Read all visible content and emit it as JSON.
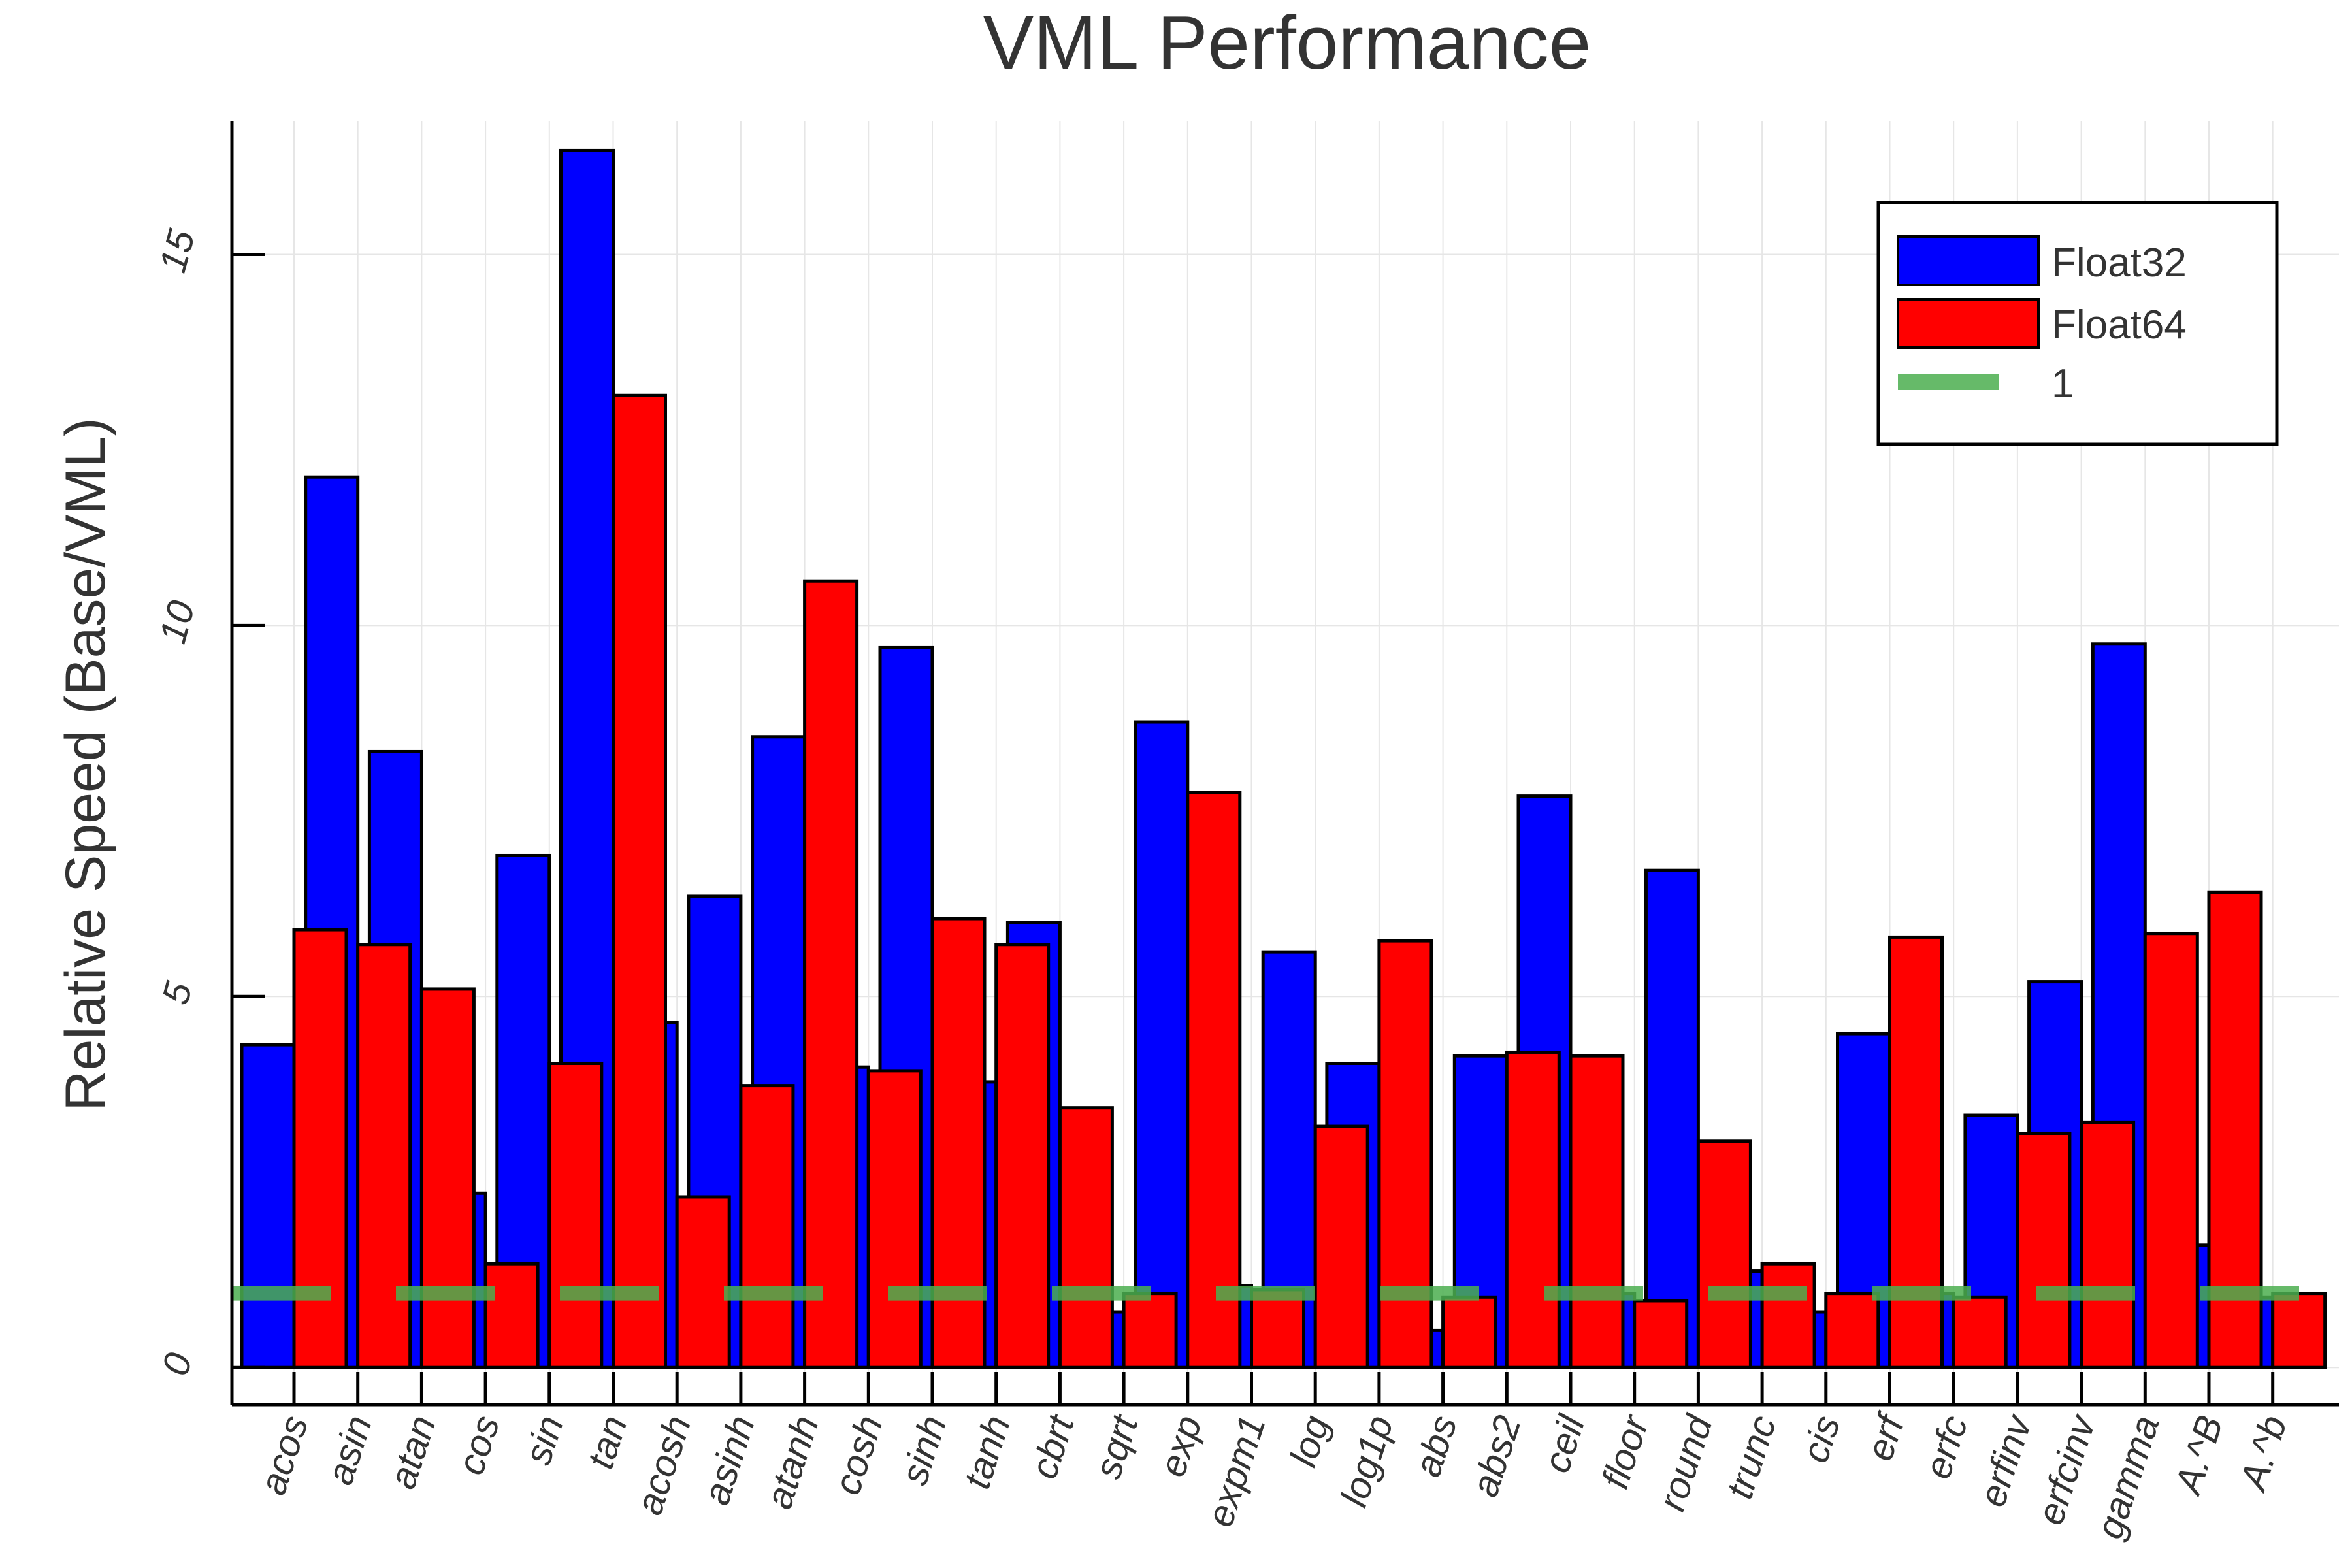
{
  "chart_data": {
    "type": "bar",
    "title": "VML Performance",
    "xlabel": "",
    "ylabel": "Relative Speed (Base/VML)",
    "ylim": [
      -0.5,
      16.8
    ],
    "yticks": [
      0,
      5,
      10,
      15
    ],
    "grid": true,
    "legend": "top-right",
    "categories": [
      "acos",
      "asin",
      "atan",
      "cos",
      "sin",
      "tan",
      "acosh",
      "asinh",
      "atanh",
      "cosh",
      "sinh",
      "tanh",
      "cbrt",
      "sqrt",
      "exp",
      "expm1",
      "log",
      "log1p",
      "abs",
      "abs2",
      "ceil",
      "floor",
      "round",
      "trunc",
      "cis",
      "erf",
      "erfc",
      "erfinv",
      "erfcinv",
      "gamma",
      "A.^B",
      "A.^b"
    ],
    "series": [
      {
        "name": "Float32",
        "color": "#0000ff",
        "values": [
          4.35,
          12.0,
          8.3,
          2.35,
          6.9,
          16.4,
          4.65,
          6.35,
          8.5,
          4.05,
          9.7,
          3.85,
          6.0,
          0.75,
          8.7,
          1.1,
          5.6,
          4.1,
          0.5,
          4.2,
          7.7,
          1.0,
          6.7,
          1.3,
          0.75,
          4.5,
          1.0,
          3.4,
          5.2,
          9.75,
          1.65,
          0.95
        ]
      },
      {
        "name": "Float64",
        "color": "#ff0000",
        "values": [
          5.9,
          5.7,
          5.1,
          1.4,
          4.1,
          13.1,
          2.3,
          3.8,
          10.6,
          4.0,
          6.05,
          5.7,
          3.5,
          1.0,
          7.75,
          1.05,
          3.25,
          5.75,
          0.95,
          4.25,
          4.2,
          0.9,
          3.05,
          1.4,
          1.0,
          5.8,
          0.95,
          3.15,
          3.3,
          5.85,
          6.4,
          1.0
        ]
      }
    ],
    "reference_line": {
      "name": "1",
      "value": 1,
      "color": "#4caf50",
      "style": "dashed"
    }
  }
}
